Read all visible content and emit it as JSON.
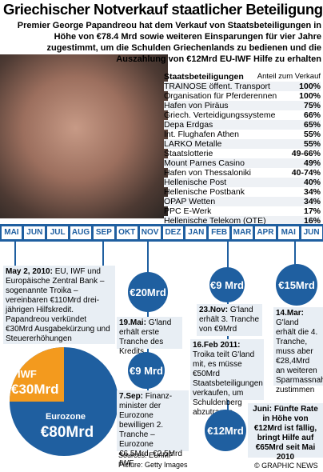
{
  "header": {
    "title": "Griechischer Notverkauf staatlicher Beteiligungen",
    "subtitle": "Premier George Papandreou hat dem Verkauf von Staatsbeteiligungen in Höhe von €78.4 Mrd sowie weiteren Einsparungen für vier Jahre zugestimmt, um die Schulden Griechenlands zu bedienen und die Auszahlung von €12Mrd EU-IWF Hilfe zu erhalten"
  },
  "table": {
    "title": "Staatsbeteiligungen",
    "column": "Anteil zum Verkauf",
    "rows": [
      [
        "TRAINOSE öffent. Transport",
        "100%"
      ],
      [
        "Organisation für Pferderennen",
        "100%"
      ],
      [
        "Hafen von Piräus",
        "75%"
      ],
      [
        "Griech. Verteidigungssysteme",
        "66%"
      ],
      [
        "Depa Erdgas",
        "65%"
      ],
      [
        "Int. Flughafen Athen",
        "55%"
      ],
      [
        "LARKO Metalle",
        "55%"
      ],
      [
        "Staatslotterie",
        "49-66%"
      ],
      [
        "Mount Parnes Casino",
        "49%"
      ],
      [
        "Hafen von Thessaloniki",
        "40-74%"
      ],
      [
        "Hellenische Post",
        "40%"
      ],
      [
        "Hellenische Postbank",
        "34%"
      ],
      [
        "OPAP Wetten",
        "34%"
      ],
      [
        "PPC E-Werk",
        "17%"
      ],
      [
        "Hellenische Telekom (OTE)",
        "16%"
      ]
    ]
  },
  "timeline": {
    "months": [
      "MAI",
      "JUN",
      "JUL",
      "AUG",
      "SEP",
      "OKT",
      "NOV",
      "DEZ",
      "JAN",
      "FEB",
      "MAR",
      "APR",
      "MAI",
      "JUN"
    ]
  },
  "events": [
    {
      "lead": "May 2, 2010:",
      "text": "EU, IWF und Europäische Zentral Bank – sogenannte Troika – vereinbaren €110Mrd drei-jährigen Hilfskredit. Papandreou verkündet €30Mrd Ausgabekürzung und Steuererhöhungen"
    },
    {
      "amount": "€20Mrd",
      "lead": "19.Mai:",
      "text": "G'land erhält erste Tranche des Kredits"
    },
    {
      "amount": "€9 Mrd",
      "lead": "7.Sep:",
      "text": "Finanz-minister der Eurozone bewilligen 2. Tranche – Eurozone €6.5Mrd, €2.5Mrd IWF"
    },
    {
      "amount": "€9 Mrd",
      "lead": "23.Nov:",
      "text": "G'land erhält 3. Tranche von €9Mrd"
    },
    {
      "lead": "16.Feb 2011:",
      "text": "Troika teilt G'land mit, es müsse €50Mrd Staatsbeteiligungen verkaufen, um Schuldenberg abzutragen"
    },
    {
      "amount": "€15Mrd",
      "lead": "14.Mar:",
      "text": "G'land erhält die 4. Tranche, muss aber €28,4Mrd an weiteren Sparmassnahmen zustimmen"
    },
    {
      "amount": "€12Mrd",
      "lead": "Juni:",
      "text": "Fünfte Rate in Höhe von €12Mrd ist fällig, bringt Hilfe auf €65Mrd seit Mai 2010"
    }
  ],
  "pie": {
    "iwf_label": "IWF",
    "iwf_amount": "€30Mrd",
    "euro_label": "Eurozone",
    "euro_amount": "€80Mrd"
  },
  "footer": {
    "sources": "Sources: EU/IMF",
    "picture": "Picture: Getty Images",
    "credit": "© GRAPHIC NEWS"
  }
}
